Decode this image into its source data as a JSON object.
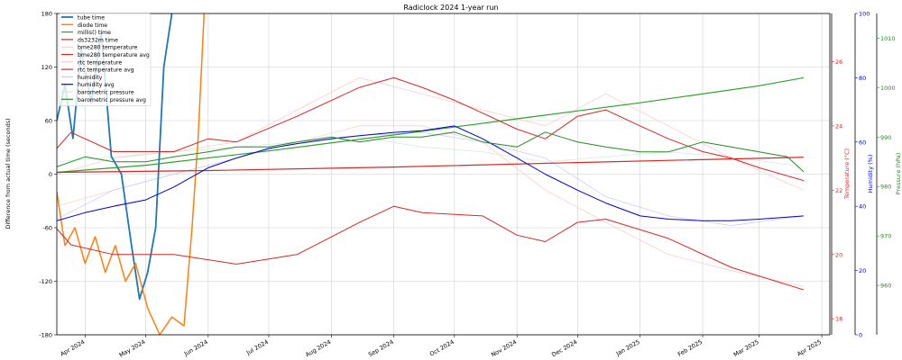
{
  "chart_data": {
    "type": "line",
    "title": "Radiclock 2024 1-year run",
    "x_ticks": [
      "Apr 2024",
      "May 2024",
      "Jun 2024",
      "Jul 2024",
      "Aug 2024",
      "Sep 2024",
      "Oct 2024",
      "Nov 2024",
      "Dec 2024",
      "Jan 2025",
      "Feb 2025",
      "Mar 2025",
      "Apr 2025"
    ],
    "x_range": [
      "2024-03-18",
      "2025-04-05"
    ],
    "left_axis": {
      "label": "Difference from actual time (seconds)",
      "ylim": [
        -180,
        180
      ],
      "ticks": [
        -180,
        -120,
        -60,
        0,
        60,
        120,
        180
      ]
    },
    "temp_axis": {
      "label": "Temperature (°C)",
      "ylim": [
        17.5,
        27.5
      ],
      "ticks": [
        18,
        20,
        22,
        24,
        26
      ],
      "color": "#d62728"
    },
    "humidity_axis": {
      "label": "Humidity (%)",
      "ylim": [
        0,
        100
      ],
      "ticks": [
        0,
        20,
        40,
        60,
        80,
        100
      ],
      "color": "#0000cc"
    },
    "pressure_axis": {
      "label": "Pressure (hPa)",
      "ylim": [
        950,
        1015
      ],
      "ticks": [
        960,
        970,
        980,
        990,
        1000,
        1010
      ],
      "color": "#228b22"
    },
    "grid": true,
    "legend_position": "top-left",
    "series": [
      {
        "name": "tube time",
        "axis": "left",
        "color": "#1f77b4",
        "width": 1.8,
        "x": [
          "2024-03-18",
          "2024-03-22",
          "2024-03-26",
          "2024-03-30",
          "2024-04-04",
          "2024-04-09",
          "2024-04-14",
          "2024-04-19",
          "2024-04-24",
          "2024-04-28",
          "2024-05-02",
          "2024-05-06",
          "2024-05-10",
          "2024-05-14"
        ],
        "y": [
          60,
          100,
          40,
          140,
          80,
          160,
          20,
          0,
          -80,
          -140,
          -110,
          -60,
          120,
          180
        ]
      },
      {
        "name": "diode time",
        "axis": "left",
        "color": "#ff7f0e",
        "width": 1.5,
        "x": [
          "2024-03-18",
          "2024-03-22",
          "2024-03-27",
          "2024-04-01",
          "2024-04-06",
          "2024-04-11",
          "2024-04-16",
          "2024-04-21",
          "2024-04-26",
          "2024-05-02",
          "2024-05-08",
          "2024-05-14",
          "2024-05-20",
          "2024-05-24",
          "2024-05-27",
          "2024-05-30"
        ],
        "y": [
          -20,
          -80,
          -60,
          -100,
          -70,
          -110,
          -80,
          -120,
          -100,
          -150,
          -180,
          -160,
          -170,
          -60,
          40,
          180
        ]
      },
      {
        "name": "millis() time",
        "axis": "left",
        "color": "#2ca02c",
        "width": 1.2,
        "x": [
          "2024-03-18",
          "2024-05-01",
          "2024-07-01",
          "2024-09-01",
          "2024-11-01",
          "2025-01-01",
          "2025-03-01",
          "2025-03-23"
        ],
        "y": [
          2,
          10,
          26,
          44,
          62,
          80,
          99,
          108
        ]
      },
      {
        "name": "ds3232m time",
        "axis": "left",
        "color": "#d62728",
        "width": 1.2,
        "x": [
          "2024-03-18",
          "2024-06-01",
          "2024-09-01",
          "2024-12-01",
          "2025-03-23"
        ],
        "y": [
          2,
          4,
          8,
          13,
          19
        ]
      },
      {
        "name": "bme280 temperature",
        "axis": "temp",
        "color": "#fbc9c9",
        "width": 0.7,
        "x": [
          "2024-03-18",
          "2024-04-15",
          "2024-05-15",
          "2024-06-15",
          "2024-07-15",
          "2024-08-15",
          "2024-09-15",
          "2024-10-15",
          "2024-11-15",
          "2024-12-15",
          "2025-01-15",
          "2025-02-15",
          "2025-03-23"
        ],
        "y": [
          21.5,
          22,
          22.5,
          23,
          23.5,
          24,
          24,
          23.5,
          22,
          21,
          20,
          19.5,
          19
        ]
      },
      {
        "name": "bme280 temperature avg",
        "axis": "temp",
        "color": "#d62728",
        "width": 1.0,
        "x": [
          "2024-03-18",
          "2024-03-25",
          "2024-04-15",
          "2024-05-15",
          "2024-06-15",
          "2024-07-15",
          "2024-08-15",
          "2024-09-01",
          "2024-09-15",
          "2024-10-15",
          "2024-11-01",
          "2024-11-15",
          "2024-12-01",
          "2024-12-15",
          "2025-01-15",
          "2025-02-15",
          "2025-03-23"
        ],
        "y": [
          20.8,
          20.3,
          20.0,
          20.0,
          19.7,
          20.0,
          21.0,
          21.5,
          21.3,
          21.2,
          20.6,
          20.4,
          21.0,
          21.1,
          20.5,
          19.6,
          18.9
        ]
      },
      {
        "name": "rtc temperature",
        "axis": "temp",
        "color": "#fbc9c9",
        "width": 0.7,
        "x": [
          "2024-03-18",
          "2024-04-15",
          "2024-05-15",
          "2024-06-15",
          "2024-07-15",
          "2024-08-15",
          "2024-09-15",
          "2024-10-15",
          "2024-11-15",
          "2024-12-15",
          "2025-01-15",
          "2025-02-15",
          "2025-03-23"
        ],
        "y": [
          22.5,
          23,
          23.2,
          23.5,
          24.5,
          25.5,
          25,
          24.5,
          24,
          25,
          24,
          23,
          22
        ]
      },
      {
        "name": "rtc temperature avg",
        "axis": "temp",
        "color": "#d62728",
        "width": 1.0,
        "x": [
          "2024-03-18",
          "2024-03-25",
          "2024-04-15",
          "2024-05-15",
          "2024-06-01",
          "2024-06-15",
          "2024-07-15",
          "2024-08-15",
          "2024-09-01",
          "2024-09-15",
          "2024-10-01",
          "2024-10-15",
          "2024-11-01",
          "2024-11-15",
          "2024-12-01",
          "2024-12-15",
          "2025-01-01",
          "2025-01-15",
          "2025-02-01",
          "2025-02-15",
          "2025-03-01",
          "2025-03-23"
        ],
        "y": [
          23.3,
          23.8,
          23.2,
          23.2,
          23.6,
          23.5,
          24.3,
          25.2,
          25.5,
          25.2,
          24.8,
          24.4,
          23.9,
          23.6,
          24.3,
          24.5,
          24.0,
          23.6,
          23.2,
          23.0,
          22.7,
          22.3
        ]
      },
      {
        "name": "humidity",
        "axis": "humidity",
        "color": "#c8c8ff",
        "width": 0.7,
        "x": [
          "2024-03-18",
          "2024-04-15",
          "2024-05-15",
          "2024-06-15",
          "2024-07-15",
          "2024-08-15",
          "2024-09-15",
          "2024-10-15",
          "2024-11-15",
          "2024-12-15",
          "2025-01-15",
          "2025-02-15",
          "2025-03-23"
        ],
        "y": [
          36,
          45,
          50,
          55,
          60,
          62,
          63,
          60,
          55,
          43,
          37,
          34,
          37
        ]
      },
      {
        "name": "humidity avg",
        "axis": "humidity",
        "color": "#0000cc",
        "width": 1.0,
        "x": [
          "2024-03-18",
          "2024-04-01",
          "2024-04-15",
          "2024-05-01",
          "2024-05-15",
          "2024-06-01",
          "2024-06-15",
          "2024-07-01",
          "2024-07-15",
          "2024-08-01",
          "2024-08-15",
          "2024-09-01",
          "2024-09-15",
          "2024-10-01",
          "2024-10-15",
          "2024-11-01",
          "2024-11-15",
          "2024-12-01",
          "2024-12-15",
          "2025-01-01",
          "2025-01-15",
          "2025-02-01",
          "2025-02-15",
          "2025-03-01",
          "2025-03-23"
        ],
        "y": [
          35.5,
          38,
          40,
          42,
          46,
          52,
          55,
          58,
          59.5,
          61,
          62,
          63,
          63.5,
          65,
          61,
          55,
          50,
          45,
          41,
          37,
          36,
          35.5,
          35.5,
          36,
          37
        ]
      },
      {
        "name": "barometric pressure",
        "axis": "pressure",
        "color": "#cfe8cf",
        "width": 0.7,
        "x": [
          "2024-03-18",
          "2024-04-15",
          "2024-05-15",
          "2024-06-15",
          "2024-07-15",
          "2024-08-15",
          "2024-09-15",
          "2024-10-15",
          "2024-11-15",
          "2024-12-15",
          "2025-01-15",
          "2025-02-15",
          "2025-03-23"
        ],
        "y": [
          985,
          986,
          987,
          988,
          989,
          990,
          988,
          987,
          985,
          986,
          987,
          986,
          984
        ]
      },
      {
        "name": "barometric pressure avg",
        "axis": "pressure",
        "color": "#228b22",
        "width": 1.0,
        "x": [
          "2024-03-18",
          "2024-04-01",
          "2024-04-15",
          "2024-05-01",
          "2024-05-15",
          "2024-06-01",
          "2024-06-15",
          "2024-07-01",
          "2024-07-15",
          "2024-08-01",
          "2024-08-15",
          "2024-09-01",
          "2024-09-15",
          "2024-10-01",
          "2024-10-15",
          "2024-11-01",
          "2024-11-15",
          "2024-12-01",
          "2024-12-15",
          "2025-01-01",
          "2025-01-15",
          "2025-02-01",
          "2025-02-15",
          "2025-03-01",
          "2025-03-15",
          "2025-03-23"
        ],
        "y": [
          984,
          986,
          985,
          985,
          986,
          987,
          988,
          988,
          989,
          990,
          989,
          990,
          990,
          991,
          989,
          988,
          991,
          989,
          988,
          987,
          987,
          989,
          988,
          987,
          986,
          983
        ]
      }
    ]
  }
}
